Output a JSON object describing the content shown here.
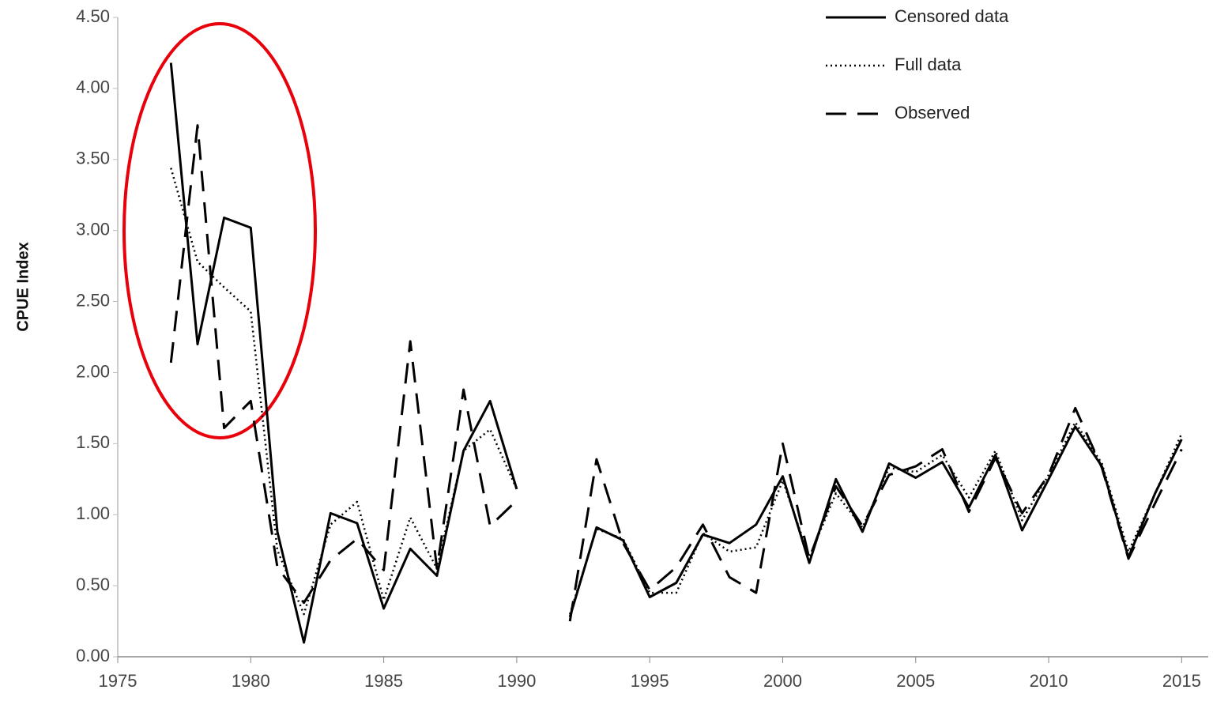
{
  "chart_data": {
    "type": "line",
    "y_label": "CPUE Index",
    "x": [
      1977,
      1978,
      1979,
      1980,
      1981,
      1982,
      1983,
      1984,
      1985,
      1986,
      1987,
      1988,
      1989,
      1990,
      1991,
      1992,
      1993,
      1994,
      1995,
      1996,
      1997,
      1998,
      1999,
      2000,
      2001,
      2002,
      2003,
      2004,
      2005,
      2006,
      2007,
      2008,
      2009,
      2010,
      2011,
      2012,
      2013,
      2014,
      2015
    ],
    "series": [
      {
        "name": "Censored data",
        "color": "#000000",
        "style": "solid",
        "values": [
          4.18,
          2.2,
          3.09,
          3.02,
          0.88,
          0.1,
          1.01,
          0.94,
          0.34,
          0.76,
          0.57,
          1.45,
          1.8,
          1.18,
          null,
          0.28,
          0.91,
          0.82,
          0.42,
          0.52,
          0.86,
          0.8,
          0.93,
          1.27,
          0.66,
          1.25,
          0.88,
          1.36,
          1.26,
          1.37,
          1.05,
          1.42,
          0.89,
          1.25,
          1.62,
          1.34,
          0.7,
          1.15,
          1.53
        ]
      },
      {
        "name": "Full data",
        "color": "#000000",
        "style": "dotted",
        "values": [
          3.44,
          2.78,
          2.6,
          2.43,
          0.75,
          0.3,
          0.93,
          1.09,
          0.4,
          0.98,
          0.62,
          1.45,
          1.6,
          1.18,
          null,
          0.3,
          0.9,
          0.83,
          0.45,
          0.45,
          0.87,
          0.74,
          0.77,
          1.24,
          0.7,
          1.15,
          0.91,
          1.33,
          1.3,
          1.42,
          1.12,
          1.45,
          0.96,
          1.28,
          1.65,
          1.36,
          0.74,
          1.15,
          1.57
        ]
      },
      {
        "name": "Observed",
        "color": "#000000",
        "style": "dashed",
        "values": [
          2.07,
          3.74,
          1.61,
          1.8,
          0.63,
          0.38,
          0.68,
          0.83,
          0.61,
          2.22,
          0.62,
          1.88,
          0.92,
          1.1,
          null,
          0.25,
          1.39,
          0.8,
          0.47,
          0.63,
          0.93,
          0.56,
          0.45,
          1.5,
          0.69,
          1.2,
          0.92,
          1.28,
          1.34,
          1.46,
          1.02,
          1.4,
          1.01,
          1.28,
          1.75,
          1.33,
          0.69,
          1.08,
          1.46
        ]
      }
    ],
    "xlim": [
      1975,
      2016
    ],
    "xticks": [
      1975,
      1980,
      1985,
      1990,
      1995,
      2000,
      2005,
      2010,
      2015
    ],
    "ylim": [
      0,
      4.5
    ],
    "yticks": [
      {
        "value": 0,
        "label": "0.00"
      },
      {
        "value": 0.5,
        "label": "0.50"
      },
      {
        "value": 1,
        "label": "1.00"
      },
      {
        "value": 1.5,
        "label": "1.50"
      },
      {
        "value": 2,
        "label": "2.00"
      },
      {
        "value": 2.5,
        "label": "2.50"
      },
      {
        "value": 3,
        "label": "3.00"
      },
      {
        "value": 3.5,
        "label": "3.50"
      },
      {
        "value": 4,
        "label": "4.00"
      },
      {
        "value": 4.5,
        "label": "4.50"
      }
    ],
    "grid": false,
    "legend": "top-right"
  }
}
